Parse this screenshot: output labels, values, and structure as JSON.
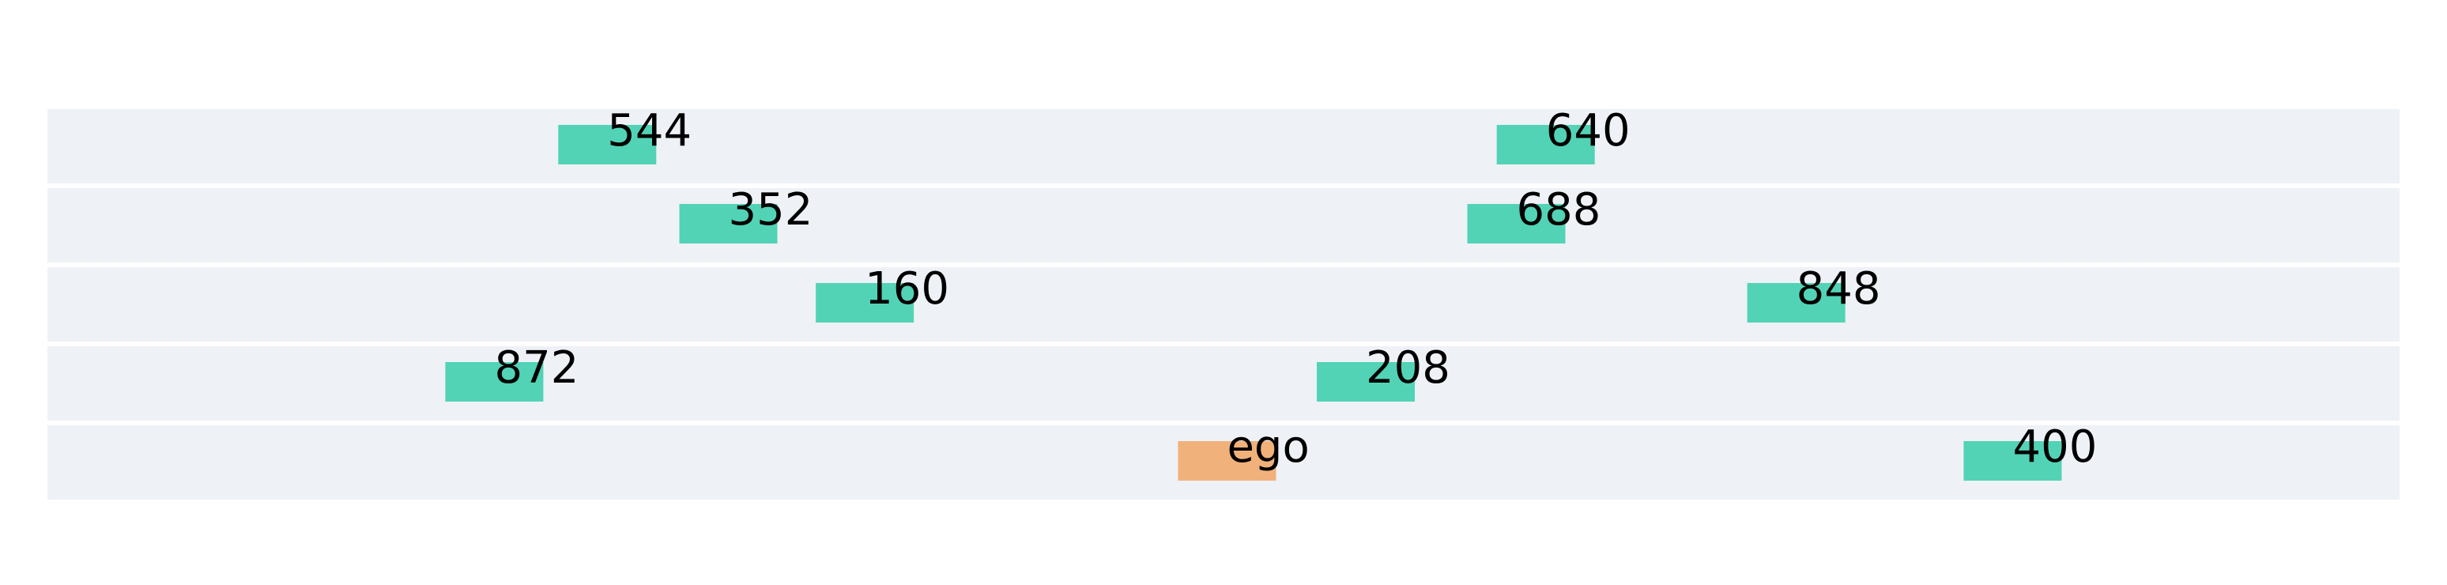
{
  "lanes": [
    {
      "vehicles": [
        {
          "label": "544",
          "kind": "other",
          "pos": 0.238
        },
        {
          "label": "640",
          "kind": "other",
          "pos": 0.637
        }
      ]
    },
    {
      "vehicles": [
        {
          "label": "352",
          "kind": "other",
          "pos": 0.2895
        },
        {
          "label": "688",
          "kind": "other",
          "pos": 0.6245
        }
      ]
    },
    {
      "vehicles": [
        {
          "label": "160",
          "kind": "other",
          "pos": 0.3475
        },
        {
          "label": "848",
          "kind": "other",
          "pos": 0.7435
        }
      ]
    },
    {
      "vehicles": [
        {
          "label": "872",
          "kind": "other",
          "pos": 0.19
        },
        {
          "label": "208",
          "kind": "other",
          "pos": 0.5605
        }
      ]
    },
    {
      "vehicles": [
        {
          "label": "ego",
          "kind": "ego",
          "pos": 0.5015
        },
        {
          "label": "400",
          "kind": "other",
          "pos": 0.8355
        }
      ]
    }
  ],
  "colors": {
    "lane": "#eef1f6",
    "ego": "#f0b27a",
    "other": "#52d3b5",
    "text": "#000000"
  }
}
